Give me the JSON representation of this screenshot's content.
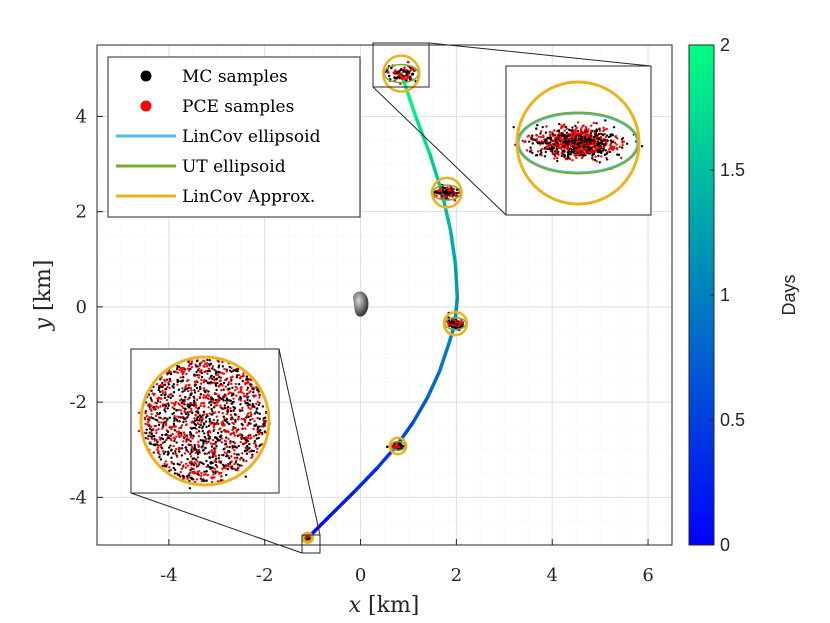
{
  "chart_data": {
    "type": "line",
    "xlabel": "x [km]",
    "xlabel_var": "x",
    "xlabel_unit": " [km]",
    "ylabel": "y [km]",
    "ylabel_var": "y",
    "ylabel_unit": " [km]",
    "xlim": [
      -5.5,
      6.5
    ],
    "ylim": [
      -5,
      5.5
    ],
    "xticks": [
      -4,
      -2,
      0,
      2,
      4,
      6
    ],
    "yticks": [
      -4,
      -2,
      0,
      2,
      4
    ],
    "grid": true,
    "minor_grid": true,
    "legend_position": "top-left",
    "legend": [
      {
        "label": "MC samples",
        "marker": "dot",
        "color": "#000000"
      },
      {
        "label": "PCE samples",
        "marker": "dot",
        "color": "#ff0000"
      },
      {
        "label": "LinCov ellipsoid",
        "marker": "line",
        "color": "#4dbeee"
      },
      {
        "label": "UT ellipsoid",
        "marker": "line",
        "color": "#77ac30"
      },
      {
        "label": "LinCov Approx.",
        "marker": "line",
        "color": "#edb120"
      }
    ],
    "trajectory": {
      "x": [
        -1.1,
        -0.6,
        -0.1,
        0.35,
        0.75,
        1.1,
        1.4,
        1.65,
        1.85,
        1.97,
        2.02,
        1.98,
        1.88,
        1.7,
        1.45,
        1.15,
        0.85
      ],
      "y": [
        -4.85,
        -4.35,
        -3.85,
        -3.38,
        -2.92,
        -2.42,
        -1.9,
        -1.35,
        -0.75,
        -0.35,
        0.2,
        0.9,
        1.6,
        2.4,
        3.2,
        4.0,
        4.9
      ],
      "days": [
        0,
        0.125,
        0.25,
        0.375,
        0.5,
        0.625,
        0.75,
        0.875,
        1.0,
        1.0625,
        1.15,
        1.28,
        1.42,
        1.52,
        1.66,
        1.82,
        2.0
      ]
    },
    "clusters": [
      {
        "x": -1.1,
        "y": -4.85,
        "day": 0
      },
      {
        "x": 0.78,
        "y": -2.92,
        "day": 0.5
      },
      {
        "x": 1.98,
        "y": -0.35,
        "day": 1.0
      },
      {
        "x": 1.8,
        "y": 2.4,
        "day": 1.5
      },
      {
        "x": 0.85,
        "y": 4.9,
        "day": 2.0
      }
    ],
    "colorbar": {
      "label": "Days",
      "range": [
        0,
        2
      ],
      "ticks": [
        "0",
        "0.5",
        "1",
        "1.5",
        "2"
      ],
      "colormap": "winter"
    },
    "asteroid": {
      "x": 0,
      "y": 0
    }
  },
  "colors": {
    "mc": "#000000",
    "pce": "#ff0000",
    "lincov": "#4dbeee",
    "ut": "#77ac30",
    "approx": "#edb120"
  }
}
